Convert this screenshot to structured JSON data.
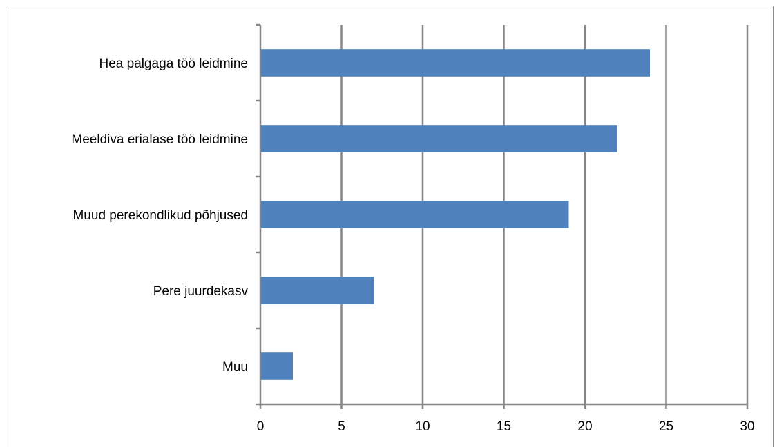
{
  "chart_data": {
    "type": "bar",
    "orientation": "horizontal",
    "categories": [
      "Hea palgaga töö leidmine",
      "Meeldiva erialase töö leidmine",
      "Muud perekondlikud põhjused",
      "Pere juurdekasv",
      "Muu"
    ],
    "values": [
      24,
      22,
      19,
      7,
      2
    ],
    "xlim": [
      0,
      30
    ],
    "x_ticks": [
      "0",
      "5",
      "10",
      "15",
      "20",
      "25",
      "30"
    ],
    "title": "",
    "xlabel": "",
    "ylabel": "",
    "grid": "vertical major gridlines",
    "legend": "none",
    "colors": {
      "bar": "#4f81bd",
      "grid": "#868686",
      "axis": "#868686",
      "text": "#000000",
      "frame": "#8c8c8c"
    }
  }
}
